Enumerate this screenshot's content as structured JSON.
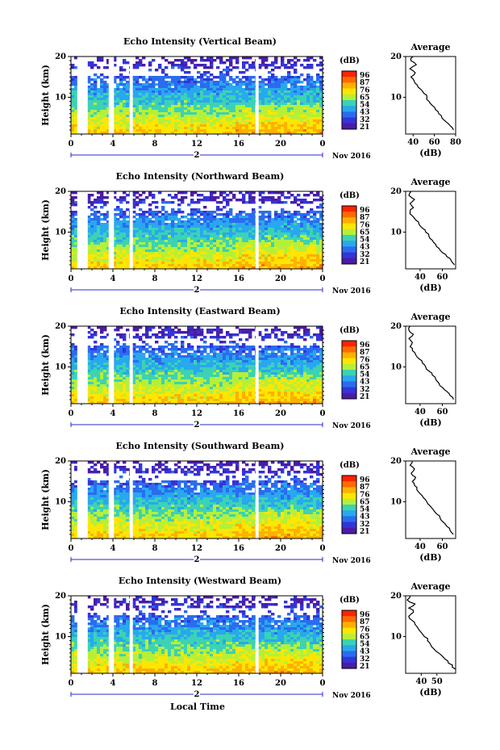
{
  "colorbar": {
    "unit": "(dB)",
    "ticks": [
      "96",
      "87",
      "76",
      "65",
      "54",
      "43",
      "32",
      "21"
    ],
    "colors": [
      "#ff2200",
      "#ff6a00",
      "#ffb000",
      "#ffe600",
      "#b4f03a",
      "#3cd2b4",
      "#28a8ee",
      "#2a6cf0",
      "#3434d8",
      "#4a1ca6"
    ]
  },
  "xaxis": {
    "ticks": [
      "0",
      "4",
      "8",
      "12",
      "16",
      "20",
      "0"
    ],
    "day": "2",
    "month": "Nov 2016",
    "title": "Local Time"
  },
  "yaxis": {
    "label": "Height (km)",
    "ticks": [
      "20",
      "10"
    ]
  },
  "average": {
    "title": "Average",
    "xlabel": "(dB)"
  },
  "chart_data": [
    {
      "type": "heatmap",
      "title": "Echo Intensity (Vertical Beam)",
      "xlabel": "",
      "ylabel": "Height (km)",
      "xlim": [
        0,
        24
      ],
      "ylim": [
        1,
        20
      ],
      "colorbar_ticks": [
        21,
        32,
        43,
        54,
        65,
        76,
        87,
        96
      ],
      "colorbar_label": "(dB)",
      "gaps_hours": [
        [
          0.6,
          1.6
        ],
        [
          3.6,
          4.1
        ],
        [
          5.6,
          5.9
        ],
        [
          17.6,
          17.9
        ]
      ]
    },
    {
      "type": "line",
      "title": "Average",
      "xlabel": "(dB)",
      "ylabel": "",
      "xticks": [
        "40",
        "60",
        "80"
      ],
      "xlim": [
        33,
        80
      ],
      "ylim": [
        1,
        20
      ],
      "series": [
        {
          "x": [
            40,
            38,
            43,
            37,
            42,
            38,
            41,
            44,
            47,
            50,
            53,
            55,
            58,
            61,
            64,
            67,
            71,
            75,
            78
          ],
          "y": [
            20,
            19,
            18,
            17,
            16,
            15,
            14,
            13,
            12,
            11,
            10,
            9,
            8,
            7,
            6,
            5,
            4,
            3,
            2
          ]
        }
      ]
    },
    {
      "type": "heatmap",
      "title": "Echo Intensity (Northward Beam)",
      "xlabel": "",
      "ylabel": "Height (km)",
      "xlim": [
        0,
        24
      ],
      "ylim": [
        1,
        20
      ],
      "colorbar_ticks": [
        21,
        32,
        43,
        54,
        65,
        76,
        87,
        96
      ],
      "colorbar_label": "(dB)",
      "gaps_hours": [
        [
          0.6,
          1.6
        ],
        [
          3.6,
          4.1
        ],
        [
          5.6,
          5.9
        ],
        [
          17.6,
          17.9
        ]
      ]
    },
    {
      "type": "line",
      "title": "Average",
      "xlabel": "(dB)",
      "ylabel": "",
      "xticks": [
        "40",
        "60"
      ],
      "xlim": [
        27,
        72
      ],
      "series": [
        {
          "x": [
            32,
            30,
            35,
            31,
            34,
            31,
            33,
            36,
            39,
            42,
            45,
            48,
            51,
            54,
            57,
            60,
            64,
            68,
            71
          ],
          "y": [
            20,
            19,
            18,
            17,
            16,
            15,
            14,
            13,
            12,
            11,
            10,
            9,
            8,
            7,
            6,
            5,
            4,
            3,
            2
          ]
        }
      ]
    },
    {
      "type": "heatmap",
      "title": "Echo Intensity (Eastward Beam)",
      "xlabel": "",
      "ylabel": "Height (km)",
      "xlim": [
        0,
        24
      ],
      "ylim": [
        1,
        20
      ],
      "colorbar_ticks": [
        21,
        32,
        43,
        54,
        65,
        76,
        87,
        96
      ],
      "colorbar_label": "(dB)",
      "gaps_hours": [
        [
          0.6,
          1.6
        ],
        [
          3.6,
          4.1
        ],
        [
          5.6,
          5.9
        ],
        [
          17.6,
          17.9
        ]
      ]
    },
    {
      "type": "line",
      "title": "Average",
      "xlabel": "(dB)",
      "ylabel": "",
      "xticks": [
        "40",
        "60"
      ],
      "xlim": [
        27,
        72
      ],
      "series": [
        {
          "x": [
            31,
            30,
            34,
            30,
            33,
            31,
            33,
            36,
            39,
            42,
            45,
            48,
            51,
            54,
            57,
            60,
            64,
            67,
            70
          ],
          "y": [
            20,
            19,
            18,
            17,
            16,
            15,
            14,
            13,
            12,
            11,
            10,
            9,
            8,
            7,
            6,
            5,
            4,
            3,
            2
          ]
        }
      ]
    },
    {
      "type": "heatmap",
      "title": "Echo Intensity (Southward Beam)",
      "xlabel": "",
      "ylabel": "Height (km)",
      "xlim": [
        0,
        24
      ],
      "ylim": [
        1,
        20
      ],
      "colorbar_ticks": [
        21,
        32,
        43,
        54,
        65,
        76,
        87,
        96
      ],
      "colorbar_label": "(dB)",
      "gaps_hours": [
        [
          0.6,
          1.6
        ],
        [
          3.6,
          4.1
        ],
        [
          5.6,
          5.9
        ],
        [
          17.6,
          17.9
        ]
      ]
    },
    {
      "type": "line",
      "title": "Average",
      "xlabel": "(dB)",
      "ylabel": "",
      "xticks": [
        "40",
        "60"
      ],
      "xlim": [
        27,
        72
      ],
      "series": [
        {
          "x": [
            33,
            31,
            35,
            32,
            36,
            33,
            35,
            37,
            40,
            43,
            46,
            49,
            52,
            55,
            58,
            61,
            64,
            67,
            70
          ],
          "y": [
            20,
            19,
            18,
            17,
            16,
            15,
            14,
            13,
            12,
            11,
            10,
            9,
            8,
            7,
            6,
            5,
            4,
            3,
            2
          ]
        }
      ]
    },
    {
      "type": "heatmap",
      "title": "Echo Intensity (Westward Beam)",
      "xlabel": "Local Time",
      "ylabel": "Height (km)",
      "xlim": [
        0,
        24
      ],
      "ylim": [
        1,
        20
      ],
      "colorbar_ticks": [
        21,
        32,
        43,
        54,
        65,
        76,
        87,
        96
      ],
      "colorbar_label": "(dB)",
      "gaps_hours": [
        [
          0.6,
          1.6
        ],
        [
          3.6,
          4.1
        ],
        [
          5.6,
          5.9
        ],
        [
          17.6,
          17.9
        ]
      ]
    },
    {
      "type": "line",
      "title": "Average",
      "xlabel": "(dB)",
      "ylabel": "",
      "xticks": [
        "40",
        "50"
      ],
      "xlim": [
        30,
        62
      ],
      "series": [
        {
          "x": [
            33,
            31,
            36,
            32,
            35,
            32,
            34,
            36,
            38,
            40,
            42,
            44,
            46,
            48,
            51,
            54,
            57,
            60,
            62
          ],
          "y": [
            20,
            19,
            18,
            17,
            16,
            15,
            14,
            13,
            12,
            11,
            10,
            9,
            8,
            7,
            6,
            5,
            4,
            3,
            2
          ]
        }
      ]
    }
  ]
}
